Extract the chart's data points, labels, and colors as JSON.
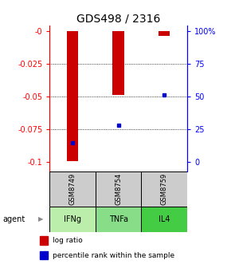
{
  "title": "GDS498 / 2316",
  "samples": [
    "GSM8749",
    "GSM8754",
    "GSM8759"
  ],
  "agents": [
    "IFNg",
    "TNFa",
    "IL4"
  ],
  "log_ratios": [
    -0.099,
    -0.049,
    -0.004
  ],
  "percentile_ranks": [
    15,
    28,
    51
  ],
  "left_yticks": [
    0,
    -0.025,
    -0.05,
    -0.075,
    -0.1
  ],
  "left_ylabels": [
    "-0",
    "-0.025",
    "-0.05",
    "-0.075",
    "-0.1"
  ],
  "right_yticks": [
    100,
    75,
    50,
    25,
    0
  ],
  "right_ylabels": [
    "100%",
    "75",
    "50",
    "25",
    "0"
  ],
  "bar_color": "#cc0000",
  "point_color": "#0000cc",
  "sample_bg": "#cccccc",
  "agent_bg_colors": [
    "#bbeeaa",
    "#88dd88",
    "#44cc44"
  ],
  "bar_width": 0.25,
  "ylim_left": [
    -0.107,
    0.004
  ],
  "grid_lines": [
    -0.025,
    -0.05,
    -0.075
  ],
  "legend_bar_label": "log ratio",
  "legend_point_label": "percentile rank within the sample",
  "agent_label": "agent",
  "title_fontsize": 10,
  "tick_fontsize": 7,
  "label_fontsize": 7.5
}
